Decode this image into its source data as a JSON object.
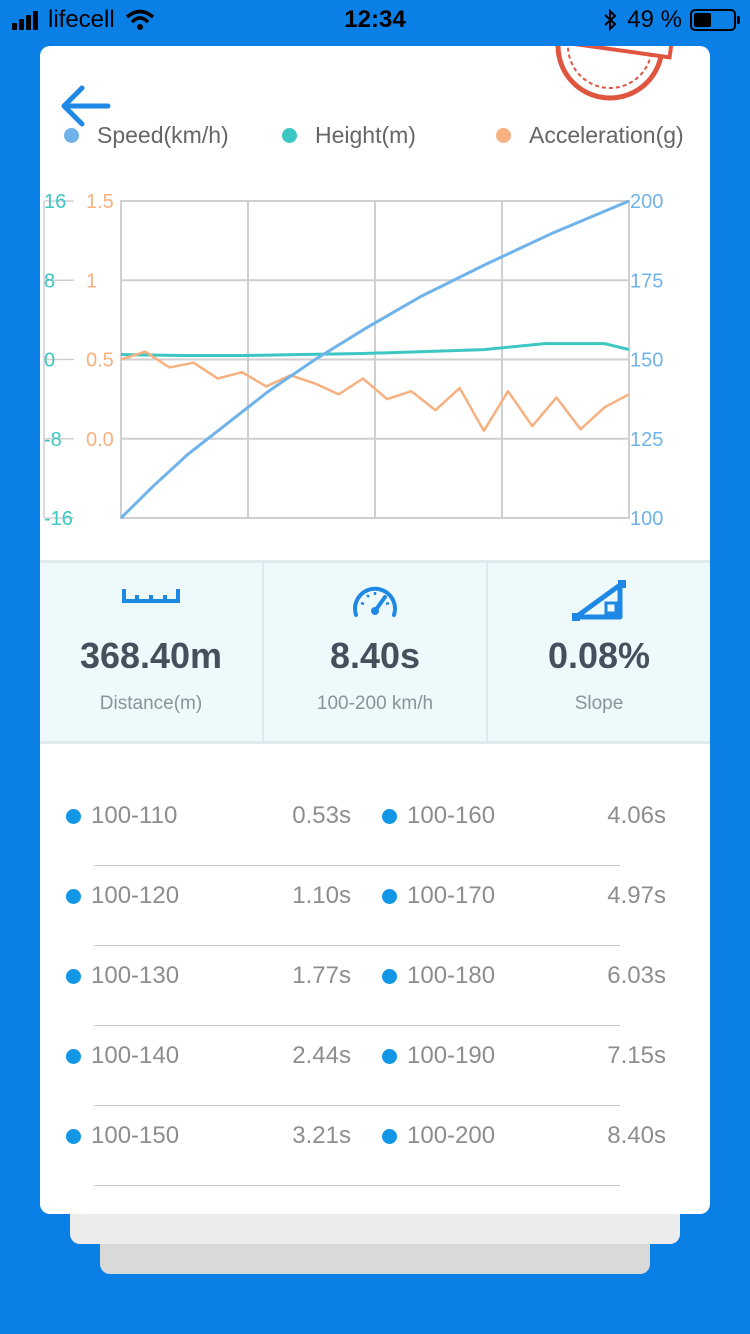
{
  "status_bar": {
    "carrier": "lifecell",
    "time": "12:34",
    "battery": "49 %"
  },
  "colors": {
    "speed": "#6fb3ea",
    "height": "#3cc7c2",
    "acceleration": "#f7b07f",
    "accent": "#1296e6",
    "background": "#0a7fe6"
  },
  "legend": [
    {
      "label": "Speed(km/h)",
      "color": "#6fb3ea"
    },
    {
      "label": "Height(m)",
      "color": "#3cc7c2"
    },
    {
      "label": "Acceleration(g)",
      "color": "#f7b07f"
    }
  ],
  "chart_data": {
    "type": "line",
    "x": [
      0,
      1,
      2,
      3,
      4,
      5,
      6,
      7,
      8,
      8.4
    ],
    "xlabel": "",
    "ylabel": "",
    "axes": {
      "height_ticks": [
        "16",
        "8",
        "0",
        "-8",
        "-16"
      ],
      "acceleration_ticks": [
        "1.5",
        "1",
        "0.5",
        "0.0"
      ],
      "speed_ticks": [
        "200",
        "175",
        "150",
        "125",
        "100"
      ]
    },
    "ylim_speed": [
      100,
      200
    ],
    "ylim_acceleration": [
      0,
      1.5
    ],
    "ylim_height": [
      -16,
      16
    ],
    "series": [
      {
        "name": "Speed(km/h)",
        "x": [
          0,
          0.53,
          1.1,
          1.77,
          2.44,
          3.21,
          4.06,
          4.97,
          6.03,
          7.15,
          8.4
        ],
        "values": [
          100,
          110,
          120,
          130,
          140,
          150,
          160,
          170,
          180,
          190,
          200
        ]
      },
      {
        "name": "Height(m)",
        "x": [
          0,
          1,
          2,
          3,
          4,
          5,
          6,
          7,
          8,
          8.4
        ],
        "values": [
          0.5,
          0.4,
          0.4,
          0.5,
          0.6,
          0.8,
          1.0,
          1.6,
          1.6,
          1.0
        ]
      },
      {
        "name": "Acceleration(g)",
        "x": [
          0,
          0.4,
          0.8,
          1.2,
          1.6,
          2.0,
          2.4,
          2.8,
          3.2,
          3.6,
          4.0,
          4.4,
          4.8,
          5.2,
          5.6,
          6.0,
          6.4,
          6.8,
          7.2,
          7.6,
          8.0,
          8.4
        ],
        "values": [
          0.5,
          0.55,
          0.45,
          0.48,
          0.38,
          0.42,
          0.33,
          0.4,
          0.35,
          0.28,
          0.38,
          0.25,
          0.3,
          0.18,
          0.32,
          0.05,
          0.3,
          0.08,
          0.26,
          0.06,
          0.2,
          0.28
        ]
      }
    ]
  },
  "stats": [
    {
      "icon": "ruler-icon",
      "value": "368.40m",
      "label": "Distance(m)"
    },
    {
      "icon": "speedometer-icon",
      "value": "8.40s",
      "label": "100-200 km/h"
    },
    {
      "icon": "slope-icon",
      "value": "0.08%",
      "label": "Slope"
    }
  ],
  "splits": [
    {
      "left_range": "100-110",
      "left_time": "0.53s",
      "right_range": "100-160",
      "right_time": "4.06s"
    },
    {
      "left_range": "100-120",
      "left_time": "1.10s",
      "right_range": "100-170",
      "right_time": "4.97s"
    },
    {
      "left_range": "100-130",
      "left_time": "1.77s",
      "right_range": "100-180",
      "right_time": "6.03s"
    },
    {
      "left_range": "100-140",
      "left_time": "2.44s",
      "right_range": "100-190",
      "right_time": "7.15s"
    },
    {
      "left_range": "100-150",
      "left_time": "3.21s",
      "right_range": "100-200",
      "right_time": "8.40s"
    }
  ]
}
